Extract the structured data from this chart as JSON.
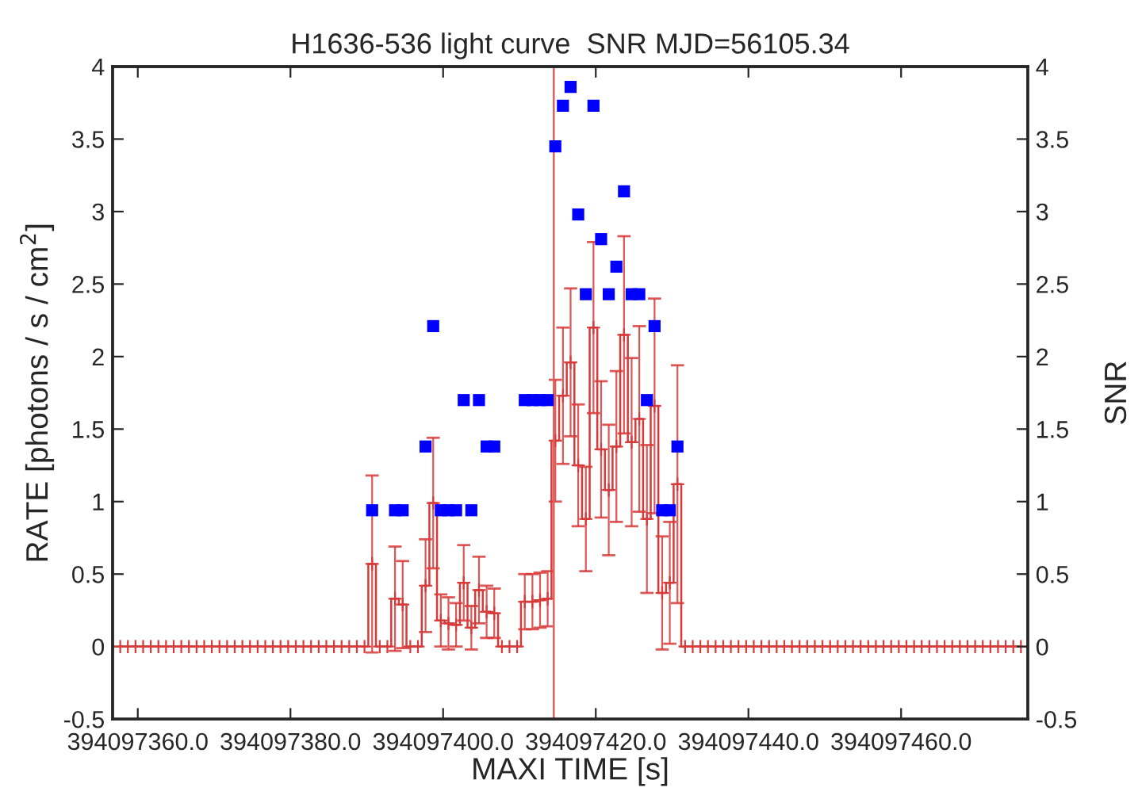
{
  "chart_data": {
    "type": "step",
    "title": "H1636-536 light curve  SNR MJD=56105.34",
    "xlabel": "MAXI TIME [s]",
    "ylabel": "RATE [photons / s / cm$^{2}$]",
    "y2label": "SNR",
    "xlim": [
      394097356.7,
      394097476.6
    ],
    "xticks": [
      {
        "value": 394097360,
        "label": "394097360.0"
      },
      {
        "value": 394097380,
        "label": "394097380.0"
      },
      {
        "value": 394097400,
        "label": "394097400.0"
      },
      {
        "value": 394097420,
        "label": "394097420.0"
      },
      {
        "value": 394097440,
        "label": "394097440.0"
      },
      {
        "value": 394097460,
        "label": "394097460.0"
      }
    ],
    "ylim": [
      -0.5,
      4
    ],
    "yticks": [
      -0.5,
      0,
      0.5,
      1,
      1.5,
      2,
      2.5,
      3,
      3.5,
      4
    ],
    "y2lim": [
      -0.5,
      4
    ],
    "y2ticks": [
      -0.5,
      0,
      0.5,
      1,
      1.5,
      2,
      2.5,
      3,
      3.5,
      4
    ],
    "grid": false,
    "legend": false,
    "ref_lines": [
      {
        "axis": "x",
        "value": 394097414.5,
        "color": "#e06060",
        "line_style": "solid"
      }
    ],
    "series": [
      {
        "color": "#d83a3a",
        "marker": "cross",
        "line_style": "solid",
        "x": [
          394097357.7,
          394097358.7,
          394097359.7,
          394097360.7,
          394097361.7,
          394097362.7,
          394097363.7,
          394097364.7,
          394097365.7,
          394097366.7,
          394097367.7,
          394097368.7,
          394097369.7,
          394097370.7,
          394097371.7,
          394097372.7,
          394097373.7,
          394097374.7,
          394097375.7,
          394097376.7,
          394097377.7,
          394097378.7,
          394097379.7,
          394097380.7,
          394097381.7,
          394097382.7,
          394097383.7,
          394097384.7,
          394097385.7,
          394097386.7,
          394097387.7,
          394097388.7,
          394097389.7,
          394097390.7,
          394097391.7,
          394097392.7,
          394097393.7,
          394097394.7,
          394097395.7,
          394097396.7,
          394097397.7,
          394097398.7,
          394097399.7,
          394097400.7,
          394097401.7,
          394097402.7,
          394097403.7,
          394097404.7,
          394097405.7,
          394097406.7,
          394097407.7,
          394097408.7,
          394097409.7,
          394097410.7,
          394097411.7,
          394097412.7,
          394097413.7,
          394097414.7,
          394097415.7,
          394097416.7,
          394097417.7,
          394097418.7,
          394097419.7,
          394097420.7,
          394097421.7,
          394097422.7,
          394097423.7,
          394097424.7,
          394097425.7,
          394097426.7,
          394097427.7,
          394097428.7,
          394097429.7,
          394097430.7,
          394097431.7,
          394097432.7,
          394097433.7,
          394097434.7,
          394097435.7,
          394097436.7,
          394097437.7,
          394097438.7,
          394097439.7,
          394097440.7,
          394097441.7,
          394097442.7,
          394097443.7,
          394097444.7,
          394097445.7,
          394097446.7,
          394097447.7,
          394097448.7,
          394097449.7,
          394097450.7,
          394097451.7,
          394097452.7,
          394097453.7,
          394097454.7,
          394097455.7,
          394097456.7,
          394097457.7,
          394097458.7,
          394097459.7,
          394097460.7,
          394097461.7,
          394097462.7,
          394097463.7,
          394097464.7,
          394097465.7,
          394097466.7,
          394097467.7,
          394097468.7,
          394097469.7,
          394097470.7,
          394097471.7,
          394097472.7,
          394097473.7,
          394097474.7,
          394097475.7
        ],
        "values": [
          0,
          0,
          0,
          0,
          0,
          0,
          0,
          0,
          0,
          0,
          0,
          0,
          0,
          0,
          0,
          0,
          0,
          0,
          0,
          0,
          0,
          0,
          0,
          0,
          0,
          0,
          0,
          0,
          0,
          0,
          0,
          0,
          0,
          0.57,
          0,
          0,
          0.33,
          0.29,
          0,
          0,
          0.42,
          0.99,
          0.18,
          0.16,
          0.15,
          0.44,
          0.13,
          0.39,
          0.24,
          0.23,
          0,
          0,
          0,
          0.31,
          0.31,
          0.32,
          0.33,
          1.42,
          1.73,
          1.96,
          1.25,
          0.88,
          2.2,
          1.36,
          1.08,
          1.38,
          2.15,
          1.41,
          1.57,
          0.88,
          1.66,
          0.37,
          0.44,
          1.12,
          0,
          0,
          0,
          0,
          0,
          0,
          0,
          0,
          0,
          0,
          0,
          0,
          0,
          0,
          0,
          0,
          0,
          0,
          0,
          0,
          0,
          0,
          0,
          0,
          0,
          0,
          0,
          0,
          0,
          0,
          0,
          0,
          0,
          0,
          0,
          0,
          0,
          0,
          0,
          0,
          0,
          0,
          0,
          0,
          0
        ],
        "errors": [
          null,
          null,
          null,
          null,
          null,
          null,
          null,
          null,
          null,
          null,
          null,
          null,
          null,
          null,
          null,
          null,
          null,
          null,
          null,
          null,
          null,
          null,
          null,
          null,
          null,
          null,
          null,
          null,
          null,
          null,
          null,
          null,
          null,
          0.61,
          null,
          null,
          0.36,
          0.3,
          null,
          null,
          0.32,
          0.45,
          0.18,
          0.18,
          0.15,
          0.26,
          0.15,
          0.23,
          0.18,
          0.17,
          null,
          null,
          null,
          0.19,
          0.19,
          0.19,
          0.19,
          0.42,
          0.47,
          0.51,
          0.42,
          0.36,
          0.59,
          0.47,
          0.45,
          0.52,
          0.68,
          0.58,
          0.64,
          0.51,
          0.74,
          0.39,
          0.42,
          0.82,
          null,
          null,
          null,
          null,
          null,
          null,
          null,
          null,
          null,
          null,
          null,
          null,
          null,
          null,
          null,
          null,
          null,
          null,
          null,
          null,
          null,
          null,
          null,
          null,
          null,
          null,
          null,
          null,
          null,
          null,
          null,
          null,
          null,
          null,
          null,
          null,
          null,
          null,
          null,
          null,
          null,
          null,
          null,
          null,
          null
        ]
      },
      {
        "type": "scatter",
        "axis": "y2",
        "color": "#0000ff",
        "marker": "square",
        "x": [
          394097390.7,
          394097393.7,
          394097394.7,
          394097397.7,
          394097398.7,
          394097399.7,
          394097400.7,
          394097401.7,
          394097402.7,
          394097403.7,
          394097404.7,
          394097405.7,
          394097406.7,
          394097410.7,
          394097411.7,
          394097412.7,
          394097413.7,
          394097414.7,
          394097415.7,
          394097416.7,
          394097417.7,
          394097418.7,
          394097419.7,
          394097420.7,
          394097421.7,
          394097422.7,
          394097423.7,
          394097424.7,
          394097425.7,
          394097426.7,
          394097427.7,
          394097428.7,
          394097429.7,
          394097430.7
        ],
        "values": [
          0.94,
          0.94,
          0.94,
          1.38,
          2.21,
          0.94,
          0.94,
          0.94,
          1.7,
          0.94,
          1.7,
          1.38,
          1.38,
          1.7,
          1.7,
          1.7,
          1.7,
          3.45,
          3.73,
          3.86,
          2.98,
          2.43,
          3.73,
          2.81,
          2.43,
          2.62,
          3.14,
          2.43,
          2.43,
          1.7,
          2.21,
          0.94,
          0.94,
          1.38
        ]
      }
    ]
  }
}
